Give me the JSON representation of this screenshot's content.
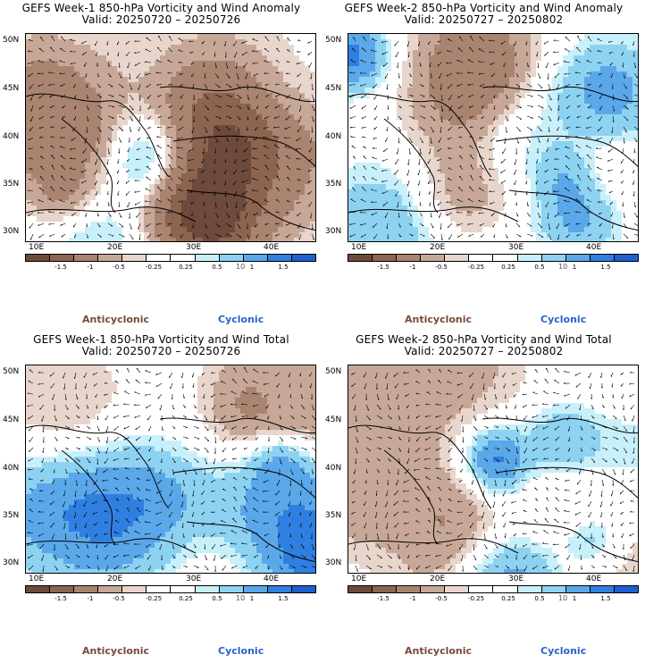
{
  "panels": [
    {
      "title": "GEFS Week-1 850-hPa Vorticity and Wind Anomaly",
      "valid": "Valid: 20250720 – 20250726",
      "seed": 11,
      "bias": 0.0
    },
    {
      "title": "GEFS Week-2 850-hPa Vorticity and Wind Anomaly",
      "valid": "Valid: 20250727 – 20250802",
      "seed": 23,
      "bias": 0.15
    },
    {
      "title": "GEFS Week-1 850-hPa Vorticity and Wind Total",
      "valid": "Valid: 20250720 – 20250726",
      "seed": 37,
      "bias": 0.05
    },
    {
      "title": "GEFS Week-2 850-hPa Vorticity and Wind Total",
      "valid": "Valid: 20250727 – 20250802",
      "seed": 53,
      "bias": 0.1
    }
  ],
  "lat_labels": [
    "50N",
    "45N",
    "40N",
    "35N",
    "30N"
  ],
  "lon_labels": [
    "10E",
    "20E",
    "30E",
    "40E"
  ],
  "colorbar": {
    "labels": [
      "-1.5",
      "-1",
      "-0.5",
      "-0.25",
      "0.25",
      "0.5",
      "1",
      "1.5"
    ],
    "colors": [
      "#6e4a3c",
      "#8c6450",
      "#a98470",
      "#c7a898",
      "#e8d6cc",
      "#ffffff",
      "#ffffff",
      "#c8f0fa",
      "#8ed2f2",
      "#5aa8ea",
      "#2f7fe0",
      "#1f5fd0"
    ],
    "unit_marker": "10"
  },
  "legend": {
    "anticyclonic": "Anticyclonic",
    "cyclonic": "Cyclonic"
  },
  "colors": {
    "anticyclonic": "#7a4a3a",
    "cyclonic": "#2a62c8"
  }
}
